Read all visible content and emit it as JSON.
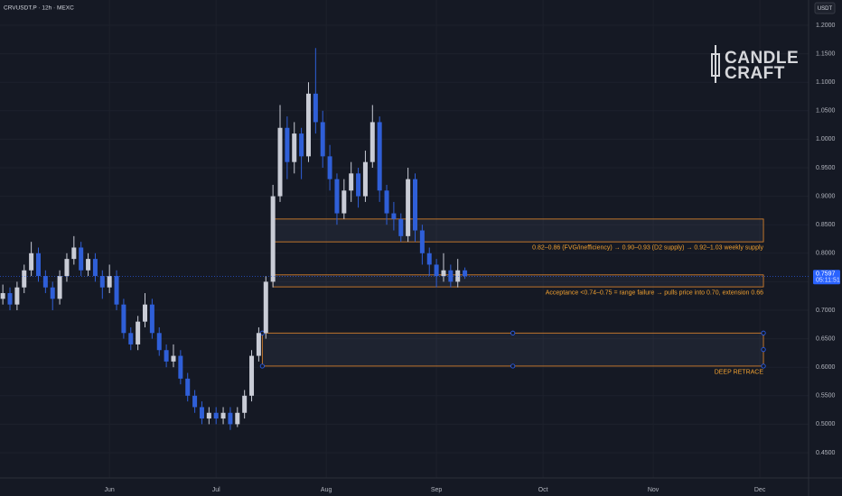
{
  "chart_data": {
    "type": "candlestick",
    "title": "CRVUSDT.P · 12h · MEXC",
    "currency": "USDT",
    "watermark": [
      "CANDLE",
      "CRAFT"
    ],
    "up_color": "#c9ccd6",
    "down_color": "#2f5fd8",
    "xlim": [
      121.2,
      348.7
    ],
    "xticks": [
      {
        "value": 152,
        "label": "Jun"
      },
      {
        "value": 182,
        "label": "Jul"
      },
      {
        "value": 213,
        "label": "Aug"
      },
      {
        "value": 244,
        "label": "Sep"
      },
      {
        "value": 274,
        "label": "Oct"
      },
      {
        "value": 305,
        "label": "Nov"
      },
      {
        "value": 335,
        "label": "Dec"
      }
    ],
    "ylim": [
      0.4057,
      1.2443
    ],
    "yticks": [
      {
        "value": 0.45,
        "label": "0.4500"
      },
      {
        "value": 0.5,
        "label": "0.5000"
      },
      {
        "value": 0.55,
        "label": "0.5500"
      },
      {
        "value": 0.6,
        "label": "0.6000"
      },
      {
        "value": 0.65,
        "label": "0.6500"
      },
      {
        "value": 0.7,
        "label": "0.7000"
      },
      {
        "value": 0.75,
        "label": "0.7500"
      },
      {
        "value": 0.8,
        "label": "0.8000"
      },
      {
        "value": 0.85,
        "label": "0.8500"
      },
      {
        "value": 0.9,
        "label": "0.9000"
      },
      {
        "value": 0.95,
        "label": "0.9500"
      },
      {
        "value": 1.0,
        "label": "1.0000"
      },
      {
        "value": 1.05,
        "label": "1.0500"
      },
      {
        "value": 1.1,
        "label": "1.1000"
      },
      {
        "value": 1.15,
        "label": "1.1500"
      },
      {
        "value": 1.2,
        "label": "1.2000"
      }
    ],
    "grid": true,
    "last_price": 0.7597,
    "countdown": "05:11:51",
    "x": [
      122,
      124,
      126,
      128,
      130,
      132,
      134,
      136,
      138,
      140,
      142,
      144,
      146,
      148,
      150,
      152,
      154,
      156,
      158,
      160,
      162,
      164,
      166,
      168,
      170,
      172,
      174,
      176,
      178,
      180,
      182,
      184,
      186,
      188,
      190,
      192,
      194,
      196,
      198,
      200,
      202,
      204,
      206,
      208,
      210,
      212,
      214,
      216,
      218,
      220,
      222,
      224,
      226,
      228,
      230,
      232,
      234,
      236,
      238,
      240,
      242,
      244,
      246,
      248,
      250,
      252
    ],
    "ohlc": [
      [
        0.72,
        0.745,
        0.71,
        0.73
      ],
      [
        0.73,
        0.74,
        0.7,
        0.71
      ],
      [
        0.71,
        0.75,
        0.7,
        0.74
      ],
      [
        0.74,
        0.78,
        0.73,
        0.77
      ],
      [
        0.77,
        0.82,
        0.76,
        0.8
      ],
      [
        0.8,
        0.81,
        0.75,
        0.76
      ],
      [
        0.76,
        0.77,
        0.73,
        0.74
      ],
      [
        0.74,
        0.75,
        0.7,
        0.72
      ],
      [
        0.72,
        0.77,
        0.71,
        0.76
      ],
      [
        0.76,
        0.8,
        0.75,
        0.79
      ],
      [
        0.79,
        0.83,
        0.78,
        0.81
      ],
      [
        0.81,
        0.82,
        0.76,
        0.77
      ],
      [
        0.77,
        0.8,
        0.76,
        0.79
      ],
      [
        0.79,
        0.8,
        0.75,
        0.76
      ],
      [
        0.76,
        0.77,
        0.72,
        0.74
      ],
      [
        0.74,
        0.78,
        0.73,
        0.76
      ],
      [
        0.76,
        0.77,
        0.7,
        0.71
      ],
      [
        0.71,
        0.72,
        0.65,
        0.66
      ],
      [
        0.66,
        0.67,
        0.63,
        0.64
      ],
      [
        0.64,
        0.69,
        0.63,
        0.68
      ],
      [
        0.68,
        0.73,
        0.67,
        0.71
      ],
      [
        0.71,
        0.72,
        0.65,
        0.66
      ],
      [
        0.66,
        0.67,
        0.62,
        0.63
      ],
      [
        0.63,
        0.64,
        0.6,
        0.61
      ],
      [
        0.61,
        0.64,
        0.6,
        0.62
      ],
      [
        0.62,
        0.63,
        0.57,
        0.58
      ],
      [
        0.58,
        0.59,
        0.54,
        0.55
      ],
      [
        0.55,
        0.56,
        0.52,
        0.53
      ],
      [
        0.53,
        0.54,
        0.5,
        0.51
      ],
      [
        0.51,
        0.53,
        0.5,
        0.52
      ],
      [
        0.52,
        0.53,
        0.5,
        0.51
      ],
      [
        0.51,
        0.53,
        0.5,
        0.52
      ],
      [
        0.52,
        0.53,
        0.49,
        0.5
      ],
      [
        0.5,
        0.53,
        0.495,
        0.52
      ],
      [
        0.52,
        0.56,
        0.51,
        0.55
      ],
      [
        0.55,
        0.63,
        0.54,
        0.62
      ],
      [
        0.62,
        0.67,
        0.61,
        0.66
      ],
      [
        0.66,
        0.76,
        0.65,
        0.75
      ],
      [
        0.75,
        0.92,
        0.74,
        0.9
      ],
      [
        0.9,
        1.06,
        0.89,
        1.02
      ],
      [
        1.02,
        1.04,
        0.93,
        0.96
      ],
      [
        0.96,
        1.03,
        0.94,
        1.01
      ],
      [
        1.01,
        1.02,
        0.93,
        0.97
      ],
      [
        0.97,
        1.1,
        0.96,
        1.08
      ],
      [
        1.08,
        1.16,
        1.01,
        1.03
      ],
      [
        1.03,
        1.05,
        0.95,
        0.97
      ],
      [
        0.97,
        0.99,
        0.91,
        0.93
      ],
      [
        0.93,
        0.94,
        0.85,
        0.87
      ],
      [
        0.87,
        0.93,
        0.86,
        0.91
      ],
      [
        0.91,
        0.96,
        0.89,
        0.94
      ],
      [
        0.94,
        0.95,
        0.88,
        0.9
      ],
      [
        0.9,
        0.98,
        0.89,
        0.96
      ],
      [
        0.96,
        1.06,
        0.95,
        1.03
      ],
      [
        1.03,
        1.04,
        0.89,
        0.91
      ],
      [
        0.91,
        0.92,
        0.85,
        0.87
      ],
      [
        0.87,
        0.89,
        0.84,
        0.86
      ],
      [
        0.86,
        0.87,
        0.82,
        0.83
      ],
      [
        0.83,
        0.95,
        0.82,
        0.93
      ],
      [
        0.93,
        0.94,
        0.82,
        0.84
      ],
      [
        0.84,
        0.85,
        0.78,
        0.8
      ],
      [
        0.8,
        0.81,
        0.76,
        0.78
      ],
      [
        0.78,
        0.79,
        0.74,
        0.76
      ],
      [
        0.76,
        0.8,
        0.75,
        0.77
      ],
      [
        0.77,
        0.78,
        0.74,
        0.75
      ],
      [
        0.75,
        0.79,
        0.74,
        0.77
      ],
      [
        0.77,
        0.775,
        0.755,
        0.7597
      ]
    ],
    "zones": [
      {
        "low": 0.82,
        "high": 0.86,
        "from": 198,
        "to": 336,
        "label": "0.82–0.86 (FVG/inefficiency) → 0.90–0.93 (D2 supply) → 0.92–1.03 weekly supply"
      },
      {
        "low": 0.741,
        "high": 0.762,
        "from": 198,
        "to": 336,
        "label": "Acceptance <0.74–0.75 = range failure → pulls price into 0.70, extension 0.66"
      },
      {
        "low": 0.602,
        "high": 0.66,
        "from": 195,
        "to": 336,
        "label": "DEEP RETRACE"
      }
    ]
  }
}
